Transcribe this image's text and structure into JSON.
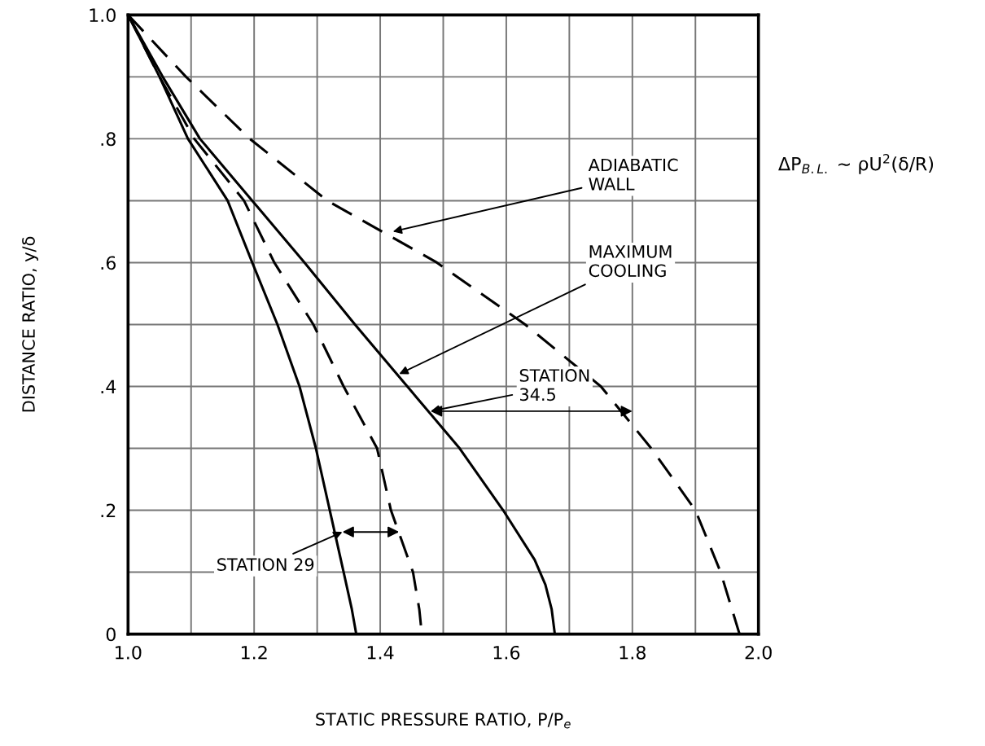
{
  "chart_data": {
    "type": "line",
    "xlabel": "STATIC PRESSURE RATIO, P/P$_{e}$",
    "ylabel": "DISTANCE RATIO, y/δ",
    "series": [
      {
        "color": "#000000",
        "line_style": "solid",
        "x": [
          1.0,
          1.05,
          1.095,
          1.158,
          1.197,
          1.237,
          1.272,
          1.298,
          1.32,
          1.342,
          1.355,
          1.362
        ],
        "values": [
          1.0,
          0.9,
          0.8,
          0.7,
          0.6,
          0.5,
          0.4,
          0.3,
          0.2,
          0.1,
          0.04,
          0.0
        ]
      },
      {
        "color": "#000000",
        "line_style": "dashed",
        "x": [
          1.0,
          1.05,
          1.105,
          1.184,
          1.232,
          1.294,
          1.342,
          1.395,
          1.417,
          1.452,
          1.462,
          1.466
        ],
        "values": [
          1.0,
          0.9,
          0.8,
          0.7,
          0.6,
          0.5,
          0.4,
          0.3,
          0.2,
          0.1,
          0.04,
          0.0
        ]
      },
      {
        "color": "#000000",
        "line_style": "solid",
        "x": [
          1.0,
          1.055,
          1.114,
          1.197,
          1.28,
          1.36,
          1.443,
          1.526,
          1.595,
          1.645,
          1.662,
          1.672,
          1.677
        ],
        "values": [
          1.0,
          0.9,
          0.8,
          0.7,
          0.6,
          0.5,
          0.4,
          0.3,
          0.2,
          0.12,
          0.08,
          0.04,
          0.0
        ]
      },
      {
        "color": "#000000",
        "line_style": "dashed",
        "x": [
          1.0,
          1.092,
          1.193,
          1.316,
          1.49,
          1.63,
          1.75,
          1.83,
          1.9,
          1.94,
          1.97
        ],
        "values": [
          1.0,
          0.9,
          0.8,
          0.7,
          0.6,
          0.5,
          0.4,
          0.3,
          0.2,
          0.1,
          0.0
        ]
      }
    ],
    "xlim": [
      1.0,
      2.0
    ],
    "ylim": [
      0,
      1.0
    ],
    "xticks": [
      {
        "value": 1,
        "label": "1.0"
      },
      {
        "value": 1.1,
        "label": null
      },
      1.2,
      {
        "value": 1.3,
        "label": null
      },
      1.4,
      {
        "value": 1.5,
        "label": null
      },
      1.6,
      {
        "value": 1.7,
        "label": null
      },
      1.8,
      {
        "value": 1.9,
        "label": null
      },
      {
        "value": 2,
        "label": "2.0"
      }
    ],
    "yticks": [
      {
        "value": 0,
        "label": "0"
      },
      {
        "value": 0.1,
        "label": null
      },
      {
        "value": 0.2,
        "label": ".2"
      },
      {
        "value": 0.3,
        "label": null
      },
      {
        "value": 0.4,
        "label": ".4"
      },
      {
        "value": 0.5,
        "label": null
      },
      {
        "value": 0.6,
        "label": ".6"
      },
      {
        "value": 0.7,
        "label": null
      },
      {
        "value": 0.8,
        "label": ".8"
      },
      {
        "value": 0.9,
        "label": null
      },
      {
        "value": 1,
        "label": "1.0"
      }
    ],
    "grid": true,
    "annotations": [
      {
        "text": "ADIABATIC\nWALL",
        "x": 1.42,
        "y": 0.65
      },
      {
        "text": "MAXIMUM\nCOOLING",
        "x": 1.43,
        "y": 0.42
      },
      {
        "text": "STATION\n34.5",
        "x": 1.48,
        "y": 0.36
      },
      {
        "text": "STATION 29",
        "x": 1.34,
        "y": 0.165
      },
      "ΔP$_{B.L.}$ ∼ ρU$^{2}$(δ/R)"
    ]
  }
}
